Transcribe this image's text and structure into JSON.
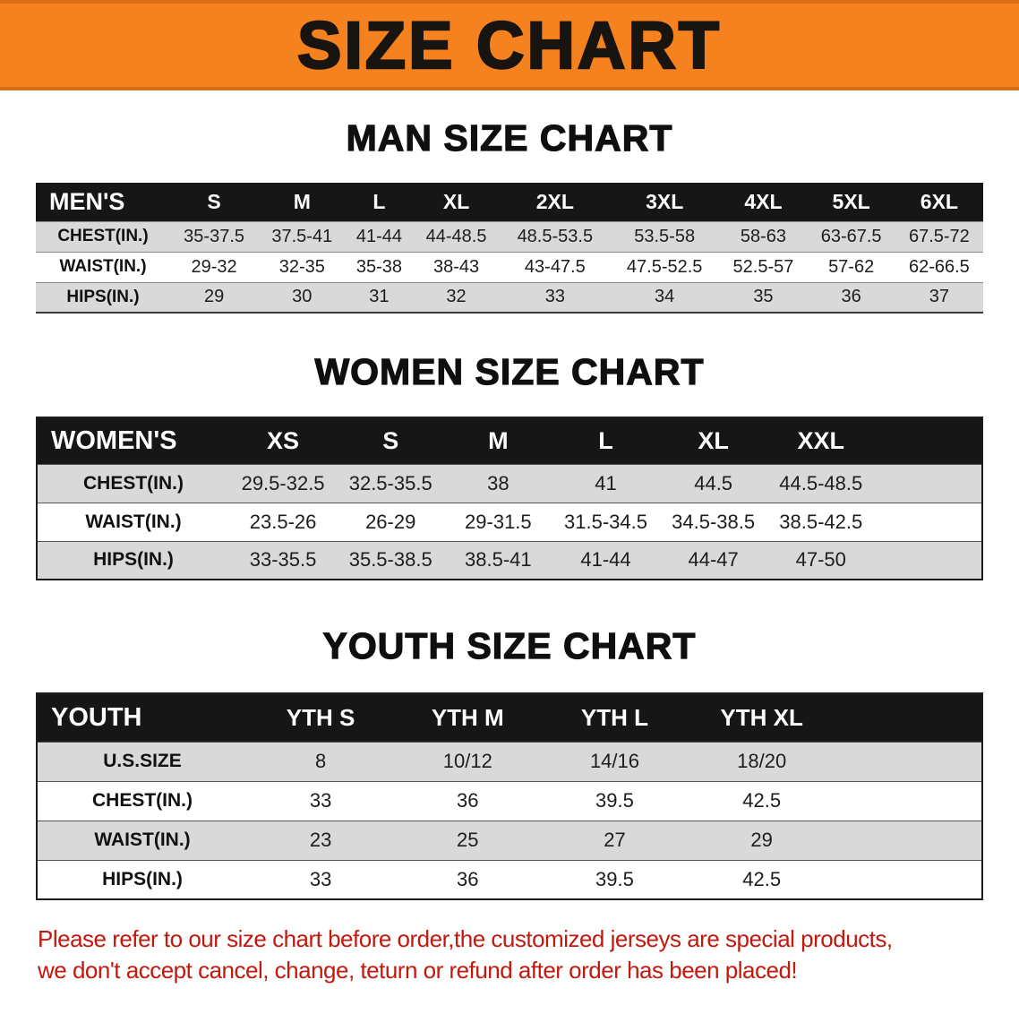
{
  "banner": {
    "title": "SIZE CHART",
    "bg_color": "#f5821f",
    "text_color": "#181410"
  },
  "sections": [
    {
      "heading": "MAN SIZE CHART",
      "table": {
        "label": "MEN'S",
        "columns": [
          "S",
          "M",
          "L",
          "XL",
          "2XL",
          "3XL",
          "4XL",
          "5XL",
          "6XL"
        ],
        "trailing_blank": false,
        "rows": [
          {
            "label": "CHEST(IN.)",
            "values": [
              "35-37.5",
              "37.5-41",
              "41-44",
              "44-48.5",
              "48.5-53.5",
              "53.5-58",
              "58-63",
              "63-67.5",
              "67.5-72"
            ]
          },
          {
            "label": "WAIST(IN.)",
            "values": [
              "29-32",
              "32-35",
              "35-38",
              "38-43",
              "43-47.5",
              "47.5-52.5",
              "52.5-57",
              "57-62",
              "62-66.5"
            ]
          },
          {
            "label": "HIPS(IN.)",
            "values": [
              "29",
              "30",
              "31",
              "32",
              "33",
              "34",
              "35",
              "36",
              "37"
            ]
          }
        ]
      }
    },
    {
      "heading": "WOMEN SIZE CHART",
      "table": {
        "label": "WOMEN'S",
        "columns": [
          "XS",
          "S",
          "M",
          "L",
          "XL",
          "XXL"
        ],
        "trailing_blank": true,
        "rows": [
          {
            "label": "CHEST(IN.)",
            "values": [
              "29.5-32.5",
              "32.5-35.5",
              "38",
              "41",
              "44.5",
              "44.5-48.5"
            ]
          },
          {
            "label": "WAIST(IN.)",
            "values": [
              "23.5-26",
              "26-29",
              "29-31.5",
              "31.5-34.5",
              "34.5-38.5",
              "38.5-42.5"
            ]
          },
          {
            "label": "HIPS(IN.)",
            "values": [
              "33-35.5",
              "35.5-38.5",
              "38.5-41",
              "41-44",
              "44-47",
              "47-50"
            ]
          }
        ]
      }
    },
    {
      "heading": "YOUTH SIZE CHART",
      "table": {
        "label": "YOUTH",
        "columns": [
          "YTH S",
          "YTH M",
          "YTH L",
          "YTH XL"
        ],
        "trailing_blank": true,
        "rows": [
          {
            "label": "U.S.SIZE",
            "values": [
              "8",
              "10/12",
              "14/16",
              "18/20"
            ]
          },
          {
            "label": "CHEST(IN.)",
            "values": [
              "33",
              "36",
              "39.5",
              "42.5"
            ]
          },
          {
            "label": "WAIST(IN.)",
            "values": [
              "23",
              "25",
              "27",
              "29"
            ]
          },
          {
            "label": "HIPS(IN.)",
            "values": [
              "33",
              "36",
              "39.5",
              "42.5"
            ]
          }
        ]
      }
    }
  ],
  "disclaimer": {
    "line1": "Please refer to our size chart before order,the customized jerseys are special products,",
    "line2": "we don't accept cancel, change, teturn or refund after order has been placed!",
    "text_color": "#c2180e"
  }
}
